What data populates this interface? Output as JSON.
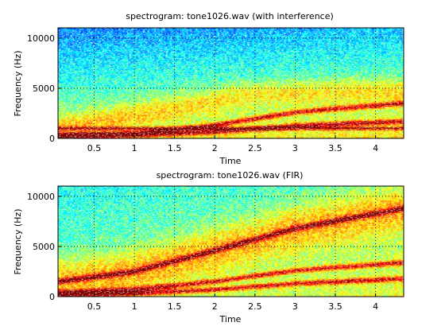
{
  "chart_data": [
    {
      "type": "heatmap",
      "title": "spectrogram: tone1026.wav (with interference)",
      "xlabel": "Time",
      "ylabel": "Frequency (Hz)",
      "xlim": [
        0.05,
        4.35
      ],
      "ylim": [
        0,
        11025
      ],
      "xticks": [
        0.5,
        1,
        1.5,
        2,
        2.5,
        3,
        3.5,
        4
      ],
      "xtick_labels": [
        "0.5",
        "1",
        "1.5",
        "2",
        "2.5",
        "3",
        "3.5",
        "4"
      ],
      "yticks": [
        0,
        5000,
        10000
      ],
      "ytick_labels": [
        "0",
        "5000",
        "10000"
      ],
      "colormap": "jet",
      "grid": true,
      "features": [
        {
          "kind": "chirp",
          "t": [
            0.05,
            1,
            2,
            3,
            4.35
          ],
          "f": [
            300,
            500,
            1300,
            2600,
            3500
          ]
        },
        {
          "kind": "chirp",
          "t": [
            0.05,
            1,
            2,
            3,
            4.35
          ],
          "f": [
            200,
            320,
            650,
            1250,
            1700
          ]
        },
        {
          "kind": "tone",
          "f": 1000
        },
        {
          "kind": "band",
          "t": [
            0.05,
            2.5,
            4.35
          ],
          "f": [
            1000,
            4500,
            4800
          ]
        }
      ]
    },
    {
      "type": "heatmap",
      "title": "spectrogram: tone1026.wav (FIR)",
      "xlabel": "Time",
      "ylabel": "Frequency (Hz)",
      "xlim": [
        0.05,
        4.35
      ],
      "ylim": [
        0,
        11025
      ],
      "xticks": [
        0.5,
        1,
        1.5,
        2,
        2.5,
        3,
        3.5,
        4
      ],
      "xtick_labels": [
        "0.5",
        "1",
        "1.5",
        "2",
        "2.5",
        "3",
        "3.5",
        "4"
      ],
      "yticks": [
        0,
        5000,
        10000
      ],
      "ytick_labels": [
        "0",
        "5000",
        "10000"
      ],
      "colormap": "jet",
      "grid": true,
      "features": [
        {
          "kind": "chirp",
          "t": [
            0.05,
            1,
            2,
            3,
            4.35
          ],
          "f": [
            1500,
            2500,
            4600,
            6800,
            8800
          ]
        },
        {
          "kind": "chirp",
          "t": [
            0.05,
            1,
            2,
            3,
            4.35
          ],
          "f": [
            400,
            700,
            1500,
            2600,
            3400
          ]
        },
        {
          "kind": "chirp",
          "t": [
            0.05,
            1,
            2,
            3,
            4.35
          ],
          "f": [
            150,
            300,
            700,
            1300,
            1800
          ]
        }
      ]
    }
  ],
  "colors": {
    "jet_dark_blue": "#00008f",
    "jet_blue": "#0000ff",
    "jet_cyan": "#00ffff",
    "jet_yellow": "#ffff00",
    "jet_red": "#ff0000",
    "jet_dark_red": "#800000",
    "axes_background": "#ffffff"
  }
}
